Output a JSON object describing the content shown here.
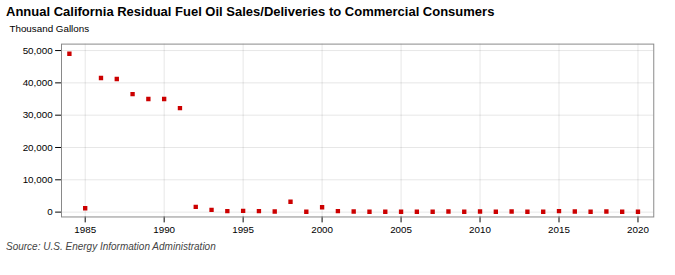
{
  "chart_data": {
    "type": "scatter",
    "title": "Annual California Residual Fuel Oil Sales/Deliveries to Commercial Consumers",
    "ylabel": "Thousand Gallons",
    "source": "Source: U.S. Energy Information Administration",
    "x": [
      1984,
      1985,
      1986,
      1987,
      1988,
      1989,
      1990,
      1991,
      1992,
      1993,
      1994,
      1995,
      1996,
      1997,
      1998,
      1999,
      2000,
      2001,
      2002,
      2003,
      2004,
      2005,
      2006,
      2007,
      2008,
      2009,
      2010,
      2011,
      2012,
      2013,
      2014,
      2015,
      2016,
      2017,
      2018,
      2019,
      2020
    ],
    "values": [
      49000,
      1200,
      41500,
      41200,
      36500,
      35000,
      35000,
      32200,
      1600,
      700,
      300,
      400,
      300,
      200,
      3200,
      100,
      1500,
      300,
      200,
      100,
      100,
      100,
      100,
      100,
      200,
      100,
      200,
      100,
      200,
      100,
      100,
      300,
      200,
      100,
      200,
      100,
      100
    ],
    "color": "#cc0000",
    "marker": "square",
    "xlim": [
      1983.5,
      2021
    ],
    "xticks": [
      1985,
      1990,
      1995,
      2000,
      2005,
      2010,
      2015,
      2020
    ],
    "ylim": [
      -1500,
      52000
    ],
    "yticks": [
      0,
      {
        "value": 10000,
        "label": "10,000"
      },
      {
        "value": 20000,
        "label": "20,000"
      },
      {
        "value": 30000,
        "label": "30,000"
      },
      {
        "value": 40000,
        "label": "40,000"
      },
      {
        "value": 50000,
        "label": "50,000"
      }
    ],
    "grid": true
  }
}
